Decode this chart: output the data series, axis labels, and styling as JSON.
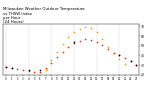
{
  "title": "Milwaukee Weather Outdoor Temperature\nvs THSW Index\nper Hour\n(24 Hours)",
  "title_fontsize": 2.8,
  "background_color": "#ffffff",
  "grid_color": "#aaaaaa",
  "hours": [
    0,
    1,
    2,
    3,
    4,
    5,
    6,
    7,
    8,
    9,
    10,
    11,
    12,
    13,
    14,
    15,
    16,
    17,
    18,
    19,
    20,
    21,
    22,
    23
  ],
  "temp_values": [
    28,
    27,
    26,
    25,
    24,
    23,
    23,
    27,
    32,
    38,
    44,
    49,
    53,
    55,
    57,
    56,
    54,
    51,
    47,
    43,
    40,
    37,
    34,
    30
  ],
  "thsw_values": [
    null,
    null,
    null,
    null,
    null,
    null,
    null,
    25,
    35,
    44,
    52,
    59,
    64,
    67,
    69,
    68,
    64,
    57,
    49,
    42,
    36,
    31,
    null,
    null
  ],
  "black_values": [
    28,
    27,
    null,
    null,
    25,
    null,
    25,
    null,
    null,
    null,
    null,
    null,
    54,
    null,
    null,
    null,
    null,
    null,
    null,
    null,
    40,
    null,
    34,
    30
  ],
  "temp_color": "#ff2200",
  "thsw_color": "#ff9900",
  "black_color": "#000000",
  "dot_size": 1.5,
  "black_dot_size": 1.5,
  "ylim": [
    20,
    72
  ],
  "xlim": [
    -0.5,
    23.5
  ],
  "tick_hours": [
    0,
    1,
    2,
    3,
    4,
    5,
    6,
    7,
    8,
    9,
    10,
    11,
    12,
    13,
    14,
    15,
    16,
    17,
    18,
    19,
    20,
    21,
    22,
    23
  ],
  "yticks": [
    20,
    30,
    40,
    50,
    60,
    70
  ],
  "ytick_labels": [
    "20",
    "30",
    "40",
    "50",
    "60",
    "70"
  ],
  "vgrid_hours": [
    0,
    4,
    8,
    12,
    16,
    20,
    24
  ]
}
